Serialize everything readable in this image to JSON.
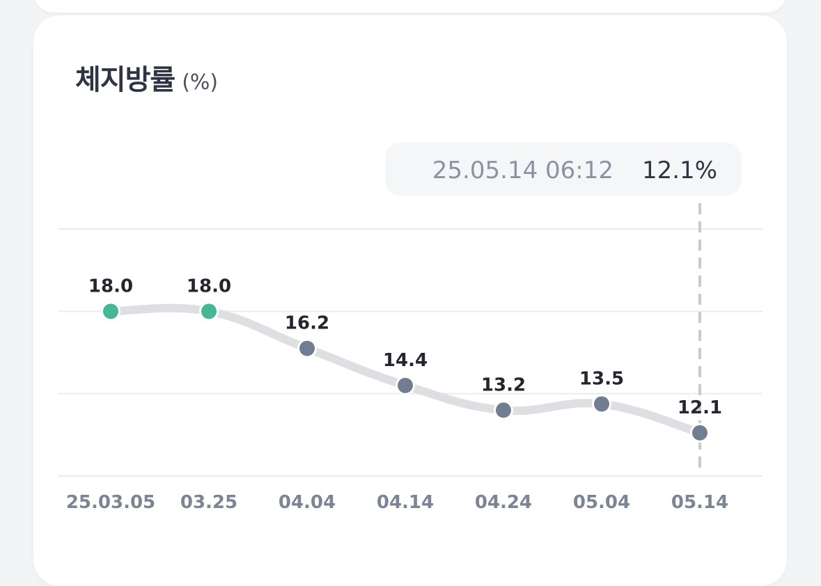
{
  "header": {
    "title": "체지방률",
    "unit": "(%)"
  },
  "tooltip": {
    "datetime": "25.05.14 06:12",
    "value": "12.1%"
  },
  "colors": {
    "highlight": "#45b795",
    "normal": "#717d90",
    "line": "#dedfe2",
    "grid": "#eaebee",
    "tooltip_bg": "#f5f6f8"
  },
  "chart_data": {
    "type": "line",
    "title": "체지방률",
    "ylabel": "(%)",
    "categories": [
      "25.03.05",
      "03.25",
      "04.04",
      "04.14",
      "04.24",
      "05.04",
      "05.14"
    ],
    "values": [
      18.0,
      18.0,
      16.2,
      14.4,
      13.2,
      13.5,
      12.1
    ],
    "value_labels": [
      "18.0",
      "18.0",
      "16.2",
      "14.4",
      "13.2",
      "13.5",
      "12.1"
    ],
    "highlighted_indices": [
      0,
      1
    ],
    "selected_index": 6,
    "ylim": [
      10,
      22
    ],
    "gridlines": [
      10,
      14,
      18,
      22
    ],
    "grid": true
  }
}
